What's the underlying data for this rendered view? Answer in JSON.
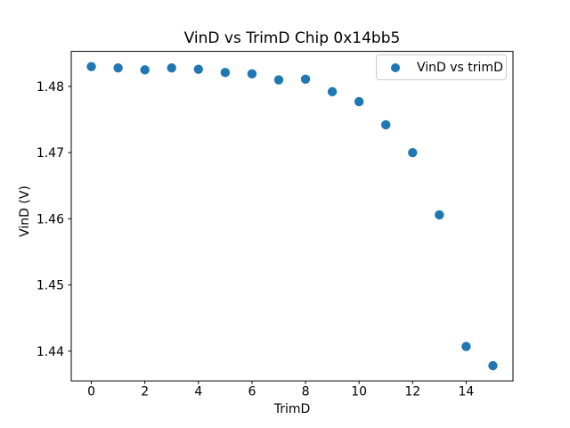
{
  "figure": {
    "background": "#ffffff",
    "title": "VinD vs TrimD Chip 0x14bb5"
  },
  "chart_data": {
    "type": "scatter",
    "title": "VinD vs TrimD Chip 0x14bb5",
    "xlabel": "TrimD",
    "ylabel": "VinD (V)",
    "legend_label": "VinD vs trimD",
    "legend_position": "upper right",
    "marker_color": "#1f77b4",
    "marker_shape": "circle",
    "grid": false,
    "x": [
      0,
      1,
      2,
      3,
      4,
      5,
      6,
      7,
      8,
      9,
      10,
      11,
      12,
      13,
      14,
      15
    ],
    "y": [
      1.483,
      1.4828,
      1.4825,
      1.4828,
      1.4826,
      1.4821,
      1.4819,
      1.481,
      1.4811,
      1.4792,
      1.4777,
      1.4742,
      1.47,
      1.4606,
      1.4407,
      1.4378
    ],
    "xlim": [
      -0.75,
      15.75
    ],
    "ylim": [
      1.4355,
      1.4853
    ],
    "xticks": [
      0,
      2,
      4,
      6,
      8,
      10,
      12,
      14
    ],
    "xtick_labels": [
      "0",
      "2",
      "4",
      "6",
      "8",
      "10",
      "12",
      "14"
    ],
    "yticks": [
      1.44,
      1.45,
      1.46,
      1.47,
      1.48
    ],
    "ytick_labels": [
      "1.44",
      "1.45",
      "1.46",
      "1.47",
      "1.48"
    ]
  }
}
